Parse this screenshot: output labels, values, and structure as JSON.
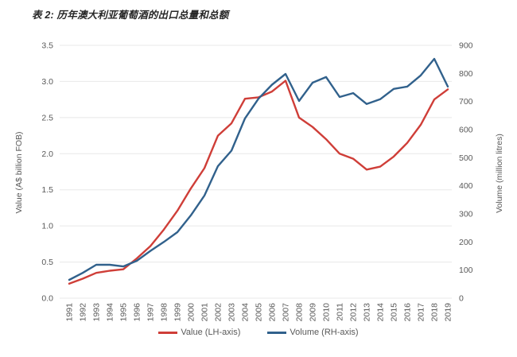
{
  "title": "表 2: 历年澳大利亚葡萄酒的出口总量和总额",
  "chart_data": {
    "type": "line",
    "title": "表 2: 历年澳大利亚葡萄酒的出口总量和总额",
    "x": [
      1991,
      1992,
      1993,
      1994,
      1995,
      1996,
      1997,
      1998,
      1999,
      2000,
      2001,
      2002,
      2003,
      2004,
      2005,
      2006,
      2007,
      2008,
      2009,
      2010,
      2011,
      2012,
      2013,
      2014,
      2015,
      2016,
      2017,
      2018,
      2019
    ],
    "x_tick_labels": [
      "1991",
      "1992",
      "1993",
      "1994",
      "1995",
      "1996",
      "1997",
      "1998",
      "1999",
      "2000",
      "2001",
      "2002",
      "2003",
      "2004",
      "2005",
      "2006",
      "2007",
      "2008",
      "2009",
      "2010",
      "2011",
      "2012",
      "2013",
      "2014",
      "2015",
      "2016",
      "2017",
      "2018",
      "2019"
    ],
    "series": [
      {
        "name": "Value (LH-axis)",
        "axis": "left",
        "color": "#cf3e38",
        "values": [
          0.2,
          0.27,
          0.35,
          0.38,
          0.4,
          0.55,
          0.72,
          0.95,
          1.21,
          1.52,
          1.8,
          2.25,
          2.42,
          2.76,
          2.78,
          2.86,
          3.01,
          2.5,
          2.37,
          2.2,
          2.0,
          1.93,
          1.78,
          1.82,
          1.96,
          2.15,
          2.4,
          2.75,
          2.89
        ]
      },
      {
        "name": "Volume (RH-axis)",
        "axis": "right",
        "color": "#31618c",
        "values": [
          65,
          90,
          119,
          119,
          113,
          133,
          168,
          200,
          235,
          295,
          365,
          470,
          525,
          640,
          710,
          760,
          798,
          702,
          767,
          787,
          716,
          730,
          691,
          708,
          745,
          753,
          793,
          852,
          753
        ]
      }
    ],
    "left_axis": {
      "label": "Value (A$ billion FOB)",
      "min": 0,
      "max": 3.5,
      "tick_step": 0.5,
      "ticks": [
        "0.0",
        "0.5",
        "1.0",
        "1.5",
        "2.0",
        "2.5",
        "3.0",
        "3.5"
      ]
    },
    "right_axis": {
      "label": "Volume (million litres)",
      "min": 0,
      "max": 900,
      "tick_step": 100,
      "ticks": [
        "0",
        "100",
        "200",
        "300",
        "400",
        "500",
        "600",
        "700",
        "800",
        "900"
      ]
    },
    "legend_position": "bottom",
    "grid": {
      "horizontal": true,
      "vertical": false
    }
  },
  "colors": {
    "value_line": "#cf3e38",
    "volume_line": "#31618c",
    "gridline": "#e8e8e8",
    "tick_text": "#595959",
    "axis_title_text": "#595959",
    "title_text": "#262626",
    "background": "#ffffff"
  }
}
